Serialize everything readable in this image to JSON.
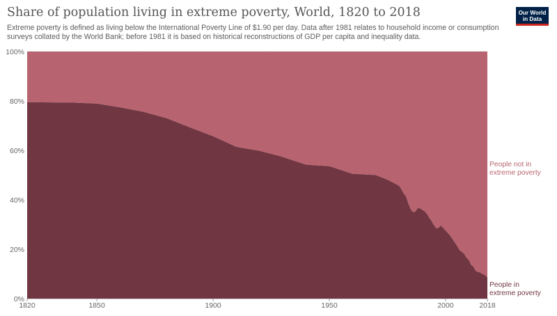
{
  "header": {
    "title": "Share of population living in extreme poverty, World, 1820 to 2018",
    "subtitle": "Extreme poverty is defined as living below the International Poverty Line of $1.90 per day. Data after 1981 relates to household income or consumption surveys collated by the World Bank; before 1981 it is based on historical reconstructions of GDP per capita and inequality data.",
    "logo_line1": "Our World",
    "logo_line2": "in Data"
  },
  "colors": {
    "poverty": "#703642",
    "not_poverty": "#b86470",
    "logo_bg": "#002147",
    "logo_accent": "#ce261e"
  },
  "chart_data": {
    "type": "area",
    "stacked": true,
    "title": "Share of population living in extreme poverty, World, 1820 to 2018",
    "xlim": [
      1820,
      2018
    ],
    "ylim": [
      0,
      100
    ],
    "x_ticks": [
      1820,
      1850,
      1900,
      1950,
      2000,
      2018
    ],
    "y_ticks": [
      0,
      20,
      40,
      60,
      80,
      100
    ],
    "y_tick_labels": [
      "0%",
      "20%",
      "40%",
      "60%",
      "80%",
      "100%"
    ],
    "grid": true,
    "legend": "right",
    "series": [
      {
        "name": "People in extreme poverty",
        "name_lines": [
          "People in",
          "extreme poverty"
        ],
        "color": "#703642",
        "x": [
          1820,
          1830,
          1840,
          1850,
          1860,
          1870,
          1880,
          1890,
          1900,
          1910,
          1920,
          1929,
          1940,
          1950,
          1960,
          1970,
          1975,
          1980,
          1981,
          1982,
          1983,
          1984,
          1985,
          1986,
          1987,
          1988,
          1989,
          1990,
          1991,
          1992,
          1993,
          1994,
          1995,
          1996,
          1997,
          1998,
          1999,
          2000,
          2001,
          2002,
          2003,
          2004,
          2005,
          2006,
          2007,
          2008,
          2009,
          2010,
          2011,
          2012,
          2013,
          2014,
          2015,
          2016,
          2017,
          2018
        ],
        "values": [
          79.5,
          79.4,
          79.3,
          78.9,
          77.4,
          75.6,
          73.0,
          69.3,
          65.7,
          61.4,
          59.8,
          57.6,
          54.2,
          53.6,
          50.5,
          50.0,
          48.1,
          45.7,
          44.3,
          42.5,
          41.4,
          38.4,
          36.2,
          35.0,
          35.2,
          36.6,
          36.6,
          35.9,
          35.3,
          34.3,
          32.7,
          31.4,
          29.7,
          28.5,
          28.6,
          29.6,
          28.6,
          27.6,
          26.5,
          25.5,
          24.1,
          22.7,
          21.3,
          19.7,
          18.9,
          18.1,
          16.6,
          15.7,
          13.7,
          12.9,
          11.2,
          10.8,
          10.5,
          9.9,
          9.5,
          8.6
        ]
      },
      {
        "name": "People not in extreme poverty",
        "name_lines": [
          "People not in",
          "extreme poverty"
        ],
        "color": "#b86470",
        "note": "complement to 100%"
      }
    ]
  }
}
